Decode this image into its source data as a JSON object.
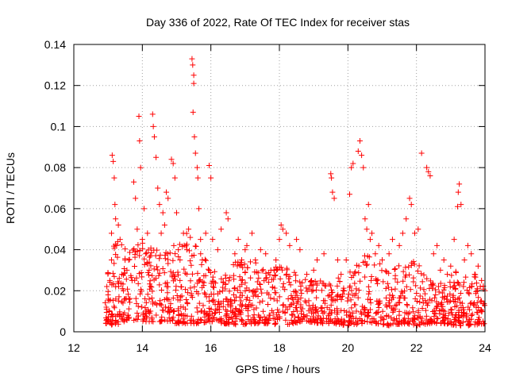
{
  "chart_data": {
    "type": "scatter",
    "title": "Day 336 of 2022, Rate Of TEC Index for receiver stas",
    "xlabel": "GPS time / hours",
    "ylabel": "ROTI / TECUs",
    "xlim": [
      12,
      24
    ],
    "ylim": [
      0,
      0.14
    ],
    "xticks": [
      12,
      14,
      16,
      18,
      20,
      22,
      24
    ],
    "yticks": [
      0,
      0.02,
      0.04,
      0.06,
      0.08,
      0.1,
      0.12,
      0.14
    ],
    "xtick_labels": [
      "12",
      "14",
      "16",
      "18",
      "20",
      "22",
      "24"
    ],
    "ytick_labels": [
      "0",
      "0.02",
      "0.04",
      "0.06",
      "0.08",
      "0.1",
      "0.12",
      "0.14"
    ],
    "grid": true,
    "marker": "+",
    "color": "#ff0000",
    "series": [
      {
        "name": "ROTI",
        "points": [
          [
            12.95,
            0.012
          ],
          [
            13.0,
            0.018
          ],
          [
            13.05,
            0.025
          ],
          [
            13.1,
            0.035
          ],
          [
            13.1,
            0.048
          ],
          [
            13.12,
            0.086
          ],
          [
            13.15,
            0.083
          ],
          [
            13.18,
            0.075
          ],
          [
            13.2,
            0.062
          ],
          [
            13.22,
            0.055
          ],
          [
            13.25,
            0.042
          ],
          [
            13.3,
            0.052
          ],
          [
            13.35,
            0.045
          ],
          [
            13.4,
            0.028
          ],
          [
            13.45,
            0.02
          ],
          [
            13.5,
            0.016
          ],
          [
            13.55,
            0.03
          ],
          [
            13.6,
            0.035
          ],
          [
            13.7,
            0.025
          ],
          [
            13.75,
            0.073
          ],
          [
            13.8,
            0.065
          ],
          [
            13.85,
            0.05
          ],
          [
            13.9,
            0.105
          ],
          [
            13.92,
            0.093
          ],
          [
            13.95,
            0.08
          ],
          [
            14.0,
            0.045
          ],
          [
            14.05,
            0.06
          ],
          [
            14.1,
            0.038
          ],
          [
            14.15,
            0.048
          ],
          [
            14.2,
            0.03
          ],
          [
            14.3,
            0.106
          ],
          [
            14.32,
            0.1
          ],
          [
            14.35,
            0.095
          ],
          [
            14.4,
            0.085
          ],
          [
            14.45,
            0.07
          ],
          [
            14.5,
            0.062
          ],
          [
            14.55,
            0.048
          ],
          [
            14.6,
            0.058
          ],
          [
            14.65,
            0.052
          ],
          [
            14.7,
            0.068
          ],
          [
            14.75,
            0.065
          ],
          [
            14.85,
            0.084
          ],
          [
            14.9,
            0.082
          ],
          [
            14.95,
            0.075
          ],
          [
            15.0,
            0.058
          ],
          [
            15.05,
            0.04
          ],
          [
            15.1,
            0.035
          ],
          [
            15.2,
            0.048
          ],
          [
            15.3,
            0.04
          ],
          [
            15.35,
            0.05
          ],
          [
            15.45,
            0.133
          ],
          [
            15.47,
            0.13
          ],
          [
            15.5,
            0.125
          ],
          [
            15.5,
            0.121
          ],
          [
            15.48,
            0.107
          ],
          [
            15.52,
            0.095
          ],
          [
            15.55,
            0.087
          ],
          [
            15.6,
            0.08
          ],
          [
            15.62,
            0.075
          ],
          [
            15.65,
            0.06
          ],
          [
            15.7,
            0.045
          ],
          [
            15.75,
            0.035
          ],
          [
            15.85,
            0.048
          ],
          [
            15.95,
            0.081
          ],
          [
            16.0,
            0.075
          ],
          [
            16.05,
            0.045
          ],
          [
            16.2,
            0.04
          ],
          [
            16.3,
            0.05
          ],
          [
            16.45,
            0.058
          ],
          [
            16.5,
            0.055
          ],
          [
            16.7,
            0.038
          ],
          [
            16.8,
            0.045
          ],
          [
            16.9,
            0.035
          ],
          [
            17.0,
            0.04
          ],
          [
            17.05,
            0.042
          ],
          [
            17.2,
            0.048
          ],
          [
            17.3,
            0.035
          ],
          [
            17.45,
            0.04
          ],
          [
            17.6,
            0.038
          ],
          [
            17.75,
            0.03
          ],
          [
            17.9,
            0.035
          ],
          [
            18.0,
            0.045
          ],
          [
            18.05,
            0.052
          ],
          [
            18.1,
            0.05
          ],
          [
            18.2,
            0.048
          ],
          [
            18.3,
            0.042
          ],
          [
            18.5,
            0.045
          ],
          [
            18.6,
            0.04
          ],
          [
            18.8,
            0.028
          ],
          [
            19.0,
            0.03
          ],
          [
            19.1,
            0.035
          ],
          [
            19.3,
            0.038
          ],
          [
            19.5,
            0.077
          ],
          [
            19.52,
            0.075
          ],
          [
            19.55,
            0.068
          ],
          [
            19.6,
            0.065
          ],
          [
            19.7,
            0.035
          ],
          [
            19.8,
            0.028
          ],
          [
            19.95,
            0.035
          ],
          [
            20.05,
            0.067
          ],
          [
            20.1,
            0.08
          ],
          [
            20.15,
            0.082
          ],
          [
            20.3,
            0.088
          ],
          [
            20.35,
            0.093
          ],
          [
            20.4,
            0.086
          ],
          [
            20.45,
            0.08
          ],
          [
            20.5,
            0.055
          ],
          [
            20.55,
            0.05
          ],
          [
            20.6,
            0.062
          ],
          [
            20.65,
            0.045
          ],
          [
            20.7,
            0.048
          ],
          [
            20.8,
            0.038
          ],
          [
            20.9,
            0.042
          ],
          [
            21.0,
            0.035
          ],
          [
            21.2,
            0.038
          ],
          [
            21.3,
            0.045
          ],
          [
            21.5,
            0.042
          ],
          [
            21.6,
            0.048
          ],
          [
            21.7,
            0.055
          ],
          [
            21.8,
            0.065
          ],
          [
            21.85,
            0.062
          ],
          [
            21.95,
            0.048
          ],
          [
            22.05,
            0.05
          ],
          [
            22.15,
            0.087
          ],
          [
            22.3,
            0.08
          ],
          [
            22.35,
            0.078
          ],
          [
            22.4,
            0.076
          ],
          [
            22.5,
            0.038
          ],
          [
            22.6,
            0.042
          ],
          [
            22.7,
            0.03
          ],
          [
            22.8,
            0.035
          ],
          [
            22.9,
            0.028
          ],
          [
            23.0,
            0.032
          ],
          [
            23.1,
            0.045
          ],
          [
            23.2,
            0.061
          ],
          [
            23.22,
            0.068
          ],
          [
            23.25,
            0.072
          ],
          [
            23.3,
            0.062
          ],
          [
            23.4,
            0.035
          ],
          [
            23.5,
            0.042
          ],
          [
            23.6,
            0.038
          ],
          [
            23.7,
            0.028
          ],
          [
            23.8,
            0.032
          ],
          [
            23.9,
            0.025
          ],
          [
            24.0,
            0.02
          ]
        ]
      }
    ],
    "dense_band": {
      "x_start": 12.9,
      "x_end": 24.0,
      "profile": [
        [
          12.9,
          0.004,
          0.025
        ],
        [
          13.2,
          0.003,
          0.045
        ],
        [
          13.6,
          0.006,
          0.04
        ],
        [
          14.0,
          0.005,
          0.045
        ],
        [
          14.4,
          0.005,
          0.04
        ],
        [
          14.8,
          0.004,
          0.04
        ],
        [
          15.2,
          0.004,
          0.05
        ],
        [
          15.6,
          0.004,
          0.045
        ],
        [
          16.0,
          0.005,
          0.03
        ],
        [
          16.4,
          0.004,
          0.03
        ],
        [
          16.8,
          0.003,
          0.035
        ],
        [
          17.2,
          0.004,
          0.035
        ],
        [
          17.6,
          0.004,
          0.03
        ],
        [
          18.0,
          0.003,
          0.035
        ],
        [
          18.4,
          0.004,
          0.03
        ],
        [
          18.8,
          0.005,
          0.025
        ],
        [
          19.2,
          0.004,
          0.025
        ],
        [
          19.6,
          0.004,
          0.025
        ],
        [
          20.0,
          0.003,
          0.03
        ],
        [
          20.4,
          0.004,
          0.04
        ],
        [
          20.8,
          0.004,
          0.035
        ],
        [
          21.2,
          0.003,
          0.03
        ],
        [
          21.6,
          0.004,
          0.035
        ],
        [
          22.0,
          0.003,
          0.035
        ],
        [
          22.4,
          0.004,
          0.025
        ],
        [
          22.8,
          0.004,
          0.025
        ],
        [
          23.2,
          0.003,
          0.03
        ],
        [
          23.6,
          0.003,
          0.03
        ],
        [
          24.0,
          0.004,
          0.025
        ]
      ],
      "count": 1400
    }
  }
}
